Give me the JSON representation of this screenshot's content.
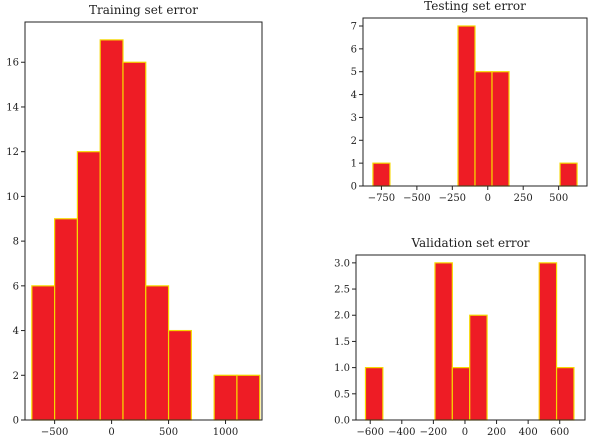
{
  "chart_data": [
    {
      "type": "bar",
      "title": "Training set error",
      "bars": [
        {
          "x0": -700,
          "x1": -500,
          "count": 6
        },
        {
          "x0": -500,
          "x1": -300,
          "count": 9
        },
        {
          "x0": -300,
          "x1": -100,
          "count": 12
        },
        {
          "x0": -100,
          "x1": 100,
          "count": 17
        },
        {
          "x0": 100,
          "x1": 300,
          "count": 16
        },
        {
          "x0": 300,
          "x1": 500,
          "count": 6
        },
        {
          "x0": 500,
          "x1": 700,
          "count": 4
        },
        {
          "x0": 700,
          "x1": 900,
          "count": 0
        },
        {
          "x0": 900,
          "x1": 1100,
          "count": 2
        },
        {
          "x0": 1100,
          "x1": 1300,
          "count": 2
        }
      ],
      "xlim": [
        -760,
        1320
      ],
      "ylim": [
        0,
        17.8
      ],
      "xticks": [
        -500,
        0,
        500,
        1000
      ],
      "yticks": [
        0,
        2,
        4,
        6,
        8,
        10,
        12,
        14,
        16
      ]
    },
    {
      "type": "bar",
      "title": "Testing set error",
      "bars": [
        {
          "x0": -810,
          "x1": -690,
          "count": 1
        },
        {
          "x0": -690,
          "x1": -570,
          "count": 0
        },
        {
          "x0": -570,
          "x1": -450,
          "count": 0
        },
        {
          "x0": -450,
          "x1": -330,
          "count": 0
        },
        {
          "x0": -330,
          "x1": -210,
          "count": 0
        },
        {
          "x0": -210,
          "x1": -90,
          "count": 7
        },
        {
          "x0": -90,
          "x1": 30,
          "count": 5
        },
        {
          "x0": 30,
          "x1": 150,
          "count": 5
        },
        {
          "x0": 150,
          "x1": 270,
          "count": 0
        },
        {
          "x0": 270,
          "x1": 390,
          "count": 0
        },
        {
          "x0": 390,
          "x1": 510,
          "count": 0
        },
        {
          "x0": 510,
          "x1": 630,
          "count": 1
        }
      ],
      "xlim": [
        -880,
        700
      ],
      "ylim": [
        0,
        7.35
      ],
      "xticks": [
        -750,
        -500,
        -250,
        0,
        250,
        500
      ],
      "yticks": [
        0,
        1,
        2,
        3,
        4,
        5,
        6,
        7
      ]
    },
    {
      "type": "bar",
      "title": "Validation set error",
      "bars": [
        {
          "x0": -630,
          "x1": -520,
          "count": 1
        },
        {
          "x0": -520,
          "x1": -410,
          "count": 0
        },
        {
          "x0": -410,
          "x1": -300,
          "count": 0
        },
        {
          "x0": -300,
          "x1": -190,
          "count": 0
        },
        {
          "x0": -190,
          "x1": -80,
          "count": 3
        },
        {
          "x0": -80,
          "x1": 30,
          "count": 1
        },
        {
          "x0": 30,
          "x1": 140,
          "count": 2
        },
        {
          "x0": 140,
          "x1": 250,
          "count": 0
        },
        {
          "x0": 250,
          "x1": 360,
          "count": 0
        },
        {
          "x0": 360,
          "x1": 470,
          "count": 0
        },
        {
          "x0": 470,
          "x1": 580,
          "count": 3
        },
        {
          "x0": 580,
          "x1": 690,
          "count": 1
        }
      ],
      "xlim": [
        -690,
        760
      ],
      "ylim": [
        0,
        3.15
      ],
      "xticks": [
        -600,
        -400,
        -200,
        0,
        200,
        400,
        600
      ],
      "yticks": [
        0.0,
        0.5,
        1.0,
        1.5,
        2.0,
        2.5,
        3.0
      ]
    }
  ],
  "style": {
    "bar_fill": "#ee1c25",
    "bar_edge": "#f5d800"
  }
}
